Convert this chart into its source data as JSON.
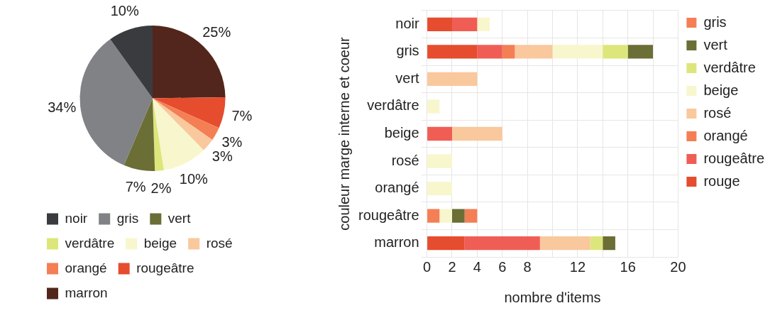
{
  "chart_data": [
    {
      "type": "pie",
      "categories": [
        "noir",
        "gris",
        "vert",
        "verdâtre",
        "beige",
        "rosé",
        "orangé",
        "rougeâtre",
        "marron"
      ],
      "values": [
        10,
        34,
        7,
        2,
        10,
        3,
        3,
        7,
        25
      ],
      "value_labels": [
        "10%",
        "34%",
        "7%",
        "2%",
        "10%",
        "3%",
        "3%",
        "7%",
        "25%"
      ],
      "colors": [
        "#3a3b3f",
        "#818285",
        "#6b6e35",
        "#dde67a",
        "#f8f6cc",
        "#f9c89d",
        "#f47f55",
        "#e64c2e",
        "#52261c"
      ],
      "legend": "bottom"
    },
    {
      "type": "bar",
      "orientation": "horizontal",
      "stacked": true,
      "categories": [
        "noir",
        "gris",
        "vert",
        "verdâtre",
        "beige",
        "rosé",
        "orangé",
        "rougeâtre",
        "marron"
      ],
      "series": [
        {
          "name": "rouge",
          "color": "#e64c2e",
          "values": [
            2,
            4,
            0,
            0,
            0,
            0,
            0,
            0,
            3
          ]
        },
        {
          "name": "rougeâtre",
          "color": "#f05d55",
          "values": [
            2,
            2,
            0,
            0,
            2,
            0,
            0,
            0,
            6
          ]
        },
        {
          "name": "orangé",
          "color": "#f47f55",
          "values": [
            0,
            1,
            0,
            0,
            0,
            0,
            0,
            1,
            0
          ]
        },
        {
          "name": "rosé",
          "color": "#f9c89d",
          "values": [
            0,
            3,
            4,
            0,
            4,
            0,
            0,
            0,
            4
          ]
        },
        {
          "name": "beige",
          "color": "#f8f6cc",
          "values": [
            1,
            4,
            0,
            1,
            0,
            2,
            2,
            1,
            0
          ]
        },
        {
          "name": "verdâtre",
          "color": "#dde67a",
          "values": [
            0,
            2,
            0,
            0,
            0,
            0,
            0,
            0,
            1
          ]
        },
        {
          "name": "vert",
          "color": "#6b6e35",
          "values": [
            0,
            2,
            0,
            0,
            0,
            0,
            0,
            1,
            1
          ]
        },
        {
          "name": "gris",
          "color": "#f47f55",
          "values": [
            0,
            0,
            0,
            0,
            0,
            0,
            0,
            1,
            0
          ]
        }
      ],
      "xlabel": "nombre d'items",
      "ylabel": "couleur marge interne et coeur",
      "xlim": [
        0,
        20
      ],
      "xticks": [
        0,
        2,
        4,
        6,
        8,
        {
          "value": 10,
          "label": null
        },
        12,
        {
          "value": 14,
          "label": null
        },
        16,
        {
          "value": 18,
          "label": null
        },
        20
      ],
      "grid": true,
      "legend": "right"
    }
  ]
}
